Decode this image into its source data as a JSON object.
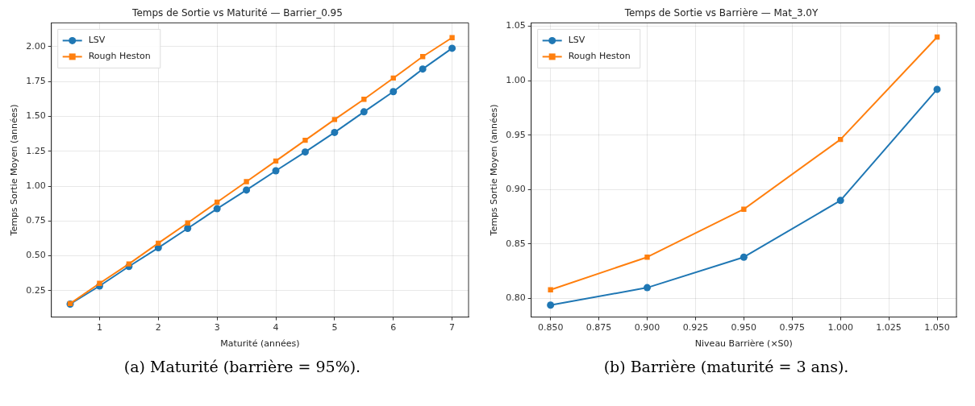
{
  "chart_data": [
    {
      "type": "line",
      "title": "Temps de Sortie vs Maturité — Barrier_0.95",
      "xlabel": "Maturité (années)",
      "ylabel": "Temps Sortie Moyen (années)",
      "annotations": [
        "(a) Maturité (barrière = 95%)."
      ],
      "x": [
        0.5,
        1,
        1.5,
        2,
        2.5,
        3,
        3.5,
        4,
        4.5,
        5,
        5.5,
        6,
        6.5,
        7
      ],
      "series": [
        {
          "name": "LSV",
          "color": "#1f77b4",
          "marker": "circle",
          "values": [
            0.154,
            0.284,
            0.424,
            0.558,
            0.697,
            0.838,
            0.972,
            1.11,
            1.245,
            1.385,
            1.533,
            1.678,
            1.84,
            1.989
          ]
        },
        {
          "name": "Rough Heston",
          "color": "#ff7f0e",
          "marker": "square",
          "values": [
            0.158,
            0.303,
            0.442,
            0.591,
            0.736,
            0.885,
            1.032,
            1.18,
            1.329,
            1.478,
            1.623,
            1.775,
            1.929,
            2.065
          ]
        }
      ],
      "xlim": [
        0.18,
        7.28
      ],
      "xticks": [
        1,
        2,
        3,
        4,
        5,
        6,
        7
      ],
      "ylim": [
        0.061,
        2.171
      ],
      "yticks": [
        {
          "value": 0.25,
          "label": "0.25"
        },
        {
          "value": 0.5,
          "label": "0.50"
        },
        {
          "value": 0.75,
          "label": "0.75"
        },
        {
          "value": 1,
          "label": "1.00"
        },
        {
          "value": 1.25,
          "label": "1.25"
        },
        {
          "value": 1.5,
          "label": "1.50"
        },
        {
          "value": 1.75,
          "label": "1.75"
        },
        {
          "value": 2,
          "label": "2.00"
        }
      ],
      "grid": true,
      "legend": "top left",
      "line_style": "solid"
    },
    {
      "type": "line",
      "title": "Temps de Sortie vs Barrière — Mat_3.0Y",
      "xlabel": "Niveau Barrière (×S0)",
      "ylabel": "Temps Sortie Moyen (années)",
      "annotations": [
        "(b) Barrière (maturité = 3 ans)."
      ],
      "x": [
        0.85,
        0.9,
        0.95,
        1,
        1.05
      ],
      "series": [
        {
          "name": "LSV",
          "color": "#1f77b4",
          "marker": "circle",
          "values": [
            0.794,
            0.81,
            0.838,
            0.89,
            0.992
          ]
        },
        {
          "name": "Rough Heston",
          "color": "#ff7f0e",
          "marker": "square",
          "values": [
            0.808,
            0.838,
            0.882,
            0.946,
            1.04
          ]
        }
      ],
      "xlim": [
        0.84,
        1.06
      ],
      "xticks": [
        {
          "value": 0.85,
          "label": "0.850"
        },
        {
          "value": 0.875,
          "label": "0.875"
        },
        {
          "value": 0.9,
          "label": "0.900"
        },
        {
          "value": 0.925,
          "label": "0.925"
        },
        {
          "value": 0.95,
          "label": "0.950"
        },
        {
          "value": 0.975,
          "label": "0.975"
        },
        {
          "value": 1,
          "label": "1.000"
        },
        {
          "value": 1.025,
          "label": "1.025"
        },
        {
          "value": 1.05,
          "label": "1.050"
        }
      ],
      "ylim": [
        0.783,
        1.053
      ],
      "yticks": [
        {
          "value": 0.8,
          "label": "0.80"
        },
        {
          "value": 0.85,
          "label": "0.85"
        },
        {
          "value": 0.9,
          "label": "0.90"
        },
        {
          "value": 0.95,
          "label": "0.95"
        },
        {
          "value": 1,
          "label": "1.00"
        },
        {
          "value": 1.05,
          "label": "1.05"
        }
      ],
      "grid": true,
      "legend": "top left",
      "line_style": "solid"
    }
  ]
}
